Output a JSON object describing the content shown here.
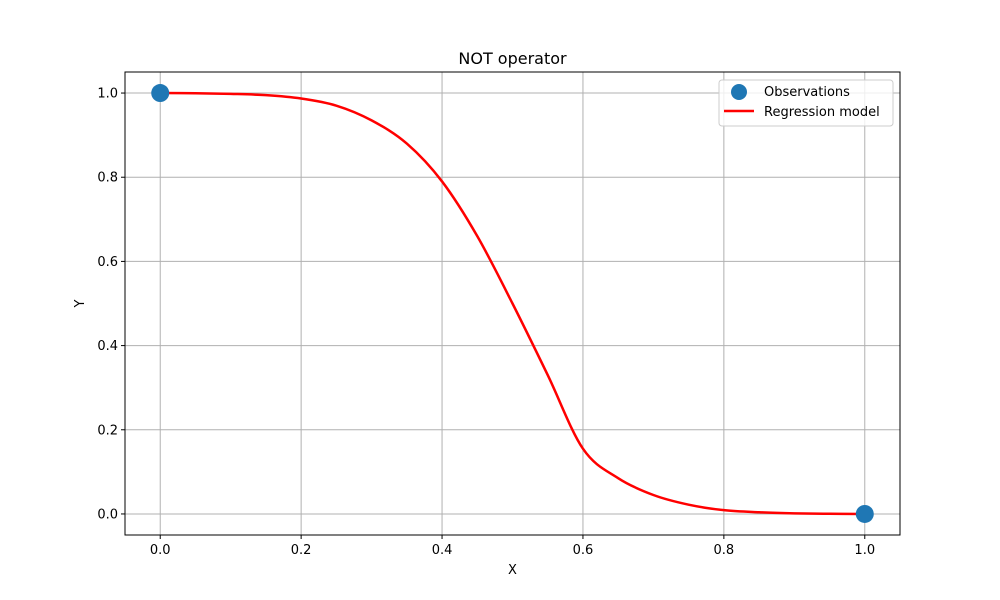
{
  "chart_data": {
    "type": "scatter+line",
    "title": "NOT operator",
    "xlabel": "X",
    "ylabel": "Y",
    "xlim": [
      -0.05,
      1.05
    ],
    "ylim": [
      -0.05,
      1.05
    ],
    "xticks": [
      "0.0",
      "0.2",
      "0.4",
      "0.6",
      "0.8",
      "1.0"
    ],
    "yticks": [
      "0.0",
      "0.2",
      "0.4",
      "0.6",
      "0.8",
      "1.0"
    ],
    "grid": true,
    "legend_position": "top-right",
    "series": [
      {
        "name": "Observations",
        "kind": "scatter",
        "color": "#1f77b4",
        "points": [
          {
            "x": 0.0,
            "y": 1.0
          },
          {
            "x": 1.0,
            "y": 0.0
          }
        ]
      },
      {
        "name": "Regression model",
        "kind": "line",
        "color": "#ff0000",
        "points": [
          {
            "x": 0.0,
            "y": 1.0
          },
          {
            "x": 0.05,
            "y": 0.9995
          },
          {
            "x": 0.1,
            "y": 0.998
          },
          {
            "x": 0.15,
            "y": 0.995
          },
          {
            "x": 0.2,
            "y": 0.987
          },
          {
            "x": 0.25,
            "y": 0.97
          },
          {
            "x": 0.3,
            "y": 0.935
          },
          {
            "x": 0.35,
            "y": 0.88
          },
          {
            "x": 0.4,
            "y": 0.79
          },
          {
            "x": 0.45,
            "y": 0.66
          },
          {
            "x": 0.5,
            "y": 0.5
          },
          {
            "x": 0.55,
            "y": 0.33
          },
          {
            "x": 0.6,
            "y": 0.155
          },
          {
            "x": 0.65,
            "y": 0.085
          },
          {
            "x": 0.7,
            "y": 0.045
          },
          {
            "x": 0.75,
            "y": 0.022
          },
          {
            "x": 0.8,
            "y": 0.009
          },
          {
            "x": 0.85,
            "y": 0.004
          },
          {
            "x": 0.9,
            "y": 0.0015
          },
          {
            "x": 0.95,
            "y": 0.0005
          },
          {
            "x": 1.0,
            "y": 0.0
          }
        ]
      }
    ]
  }
}
